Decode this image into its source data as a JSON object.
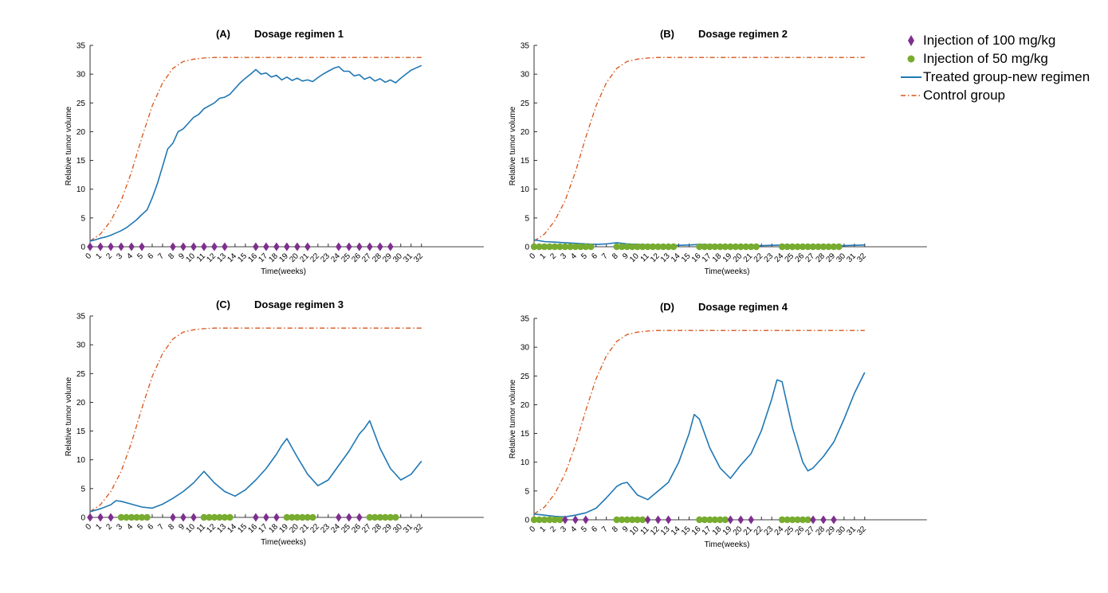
{
  "colors": {
    "treated": "#1f77b4",
    "control": "#d95319",
    "inj100": "#7e2f8e",
    "inj50": "#77ac30",
    "axis": "#000000"
  },
  "legend": {
    "entries": [
      {
        "label": "Injection of 100 mg/kg",
        "marker": "diamond",
        "color": "#7e2f8e"
      },
      {
        "label": "Injection of 50 mg/kg",
        "marker": "circle",
        "color": "#77ac30"
      },
      {
        "label": "Treated group-new regimen",
        "marker": "solid-line",
        "color": "#1f77b4"
      },
      {
        "label": "Control group",
        "marker": "dash-dot-line",
        "color": "#d95319"
      }
    ]
  },
  "chart_data": [
    {
      "type": "line",
      "panel": "(A)",
      "title": "Dosage regimen 1",
      "xlabel": "Time(weeks)",
      "ylabel": "Relative tumor volume",
      "xlim": [
        0,
        32
      ],
      "ylim": [
        0,
        35
      ],
      "xticks": [
        "0",
        "1",
        "2",
        "3",
        "4",
        "5",
        "6",
        "7",
        "8",
        "9",
        "10",
        "11",
        "12",
        "13",
        "14",
        "15",
        "16",
        "17",
        "18",
        "19",
        "20",
        "21",
        "22",
        "23",
        "24",
        "25",
        "26",
        "27",
        "28",
        "29",
        "30",
        "31",
        "32"
      ],
      "yticks": [
        "0",
        "5",
        "10",
        "15",
        "20",
        "25",
        "30",
        "35"
      ],
      "series": [
        {
          "name": "Control group",
          "style": "dash-dot",
          "x": [
            0,
            1,
            2,
            3,
            4,
            5,
            6,
            7,
            8,
            9,
            10,
            11,
            12,
            14,
            16,
            20,
            24,
            28,
            32
          ],
          "y": [
            1.0,
            2.2,
            4.5,
            8.0,
            13.0,
            19.0,
            24.5,
            28.5,
            31.0,
            32.2,
            32.6,
            32.8,
            32.9,
            32.9,
            32.9,
            32.9,
            32.9,
            32.9,
            32.9
          ]
        },
        {
          "name": "Treated group-new regimen",
          "style": "solid",
          "x": [
            0,
            0.5,
            1,
            1.5,
            2,
            2.5,
            3,
            3.5,
            4,
            4.5,
            5,
            5.5,
            6,
            6.5,
            7,
            7.5,
            8,
            8.5,
            9,
            9.5,
            10,
            10.5,
            11,
            11.5,
            12,
            12.5,
            13,
            13.5,
            14,
            14.5,
            15,
            15.5,
            16,
            16.5,
            17,
            17.5,
            18,
            18.5,
            19,
            19.5,
            20,
            20.5,
            21,
            21.5,
            22,
            22.5,
            23,
            23.5,
            24,
            24.5,
            25,
            25.5,
            26,
            26.5,
            27,
            27.5,
            28,
            28.5,
            29,
            29.5,
            30,
            30.5,
            31,
            31.5,
            32
          ],
          "y": [
            1.0,
            1.2,
            1.5,
            1.7,
            2.0,
            2.4,
            2.8,
            3.3,
            4.0,
            4.7,
            5.6,
            6.4,
            8.5,
            11.0,
            14.0,
            17.0,
            18.0,
            20.0,
            20.5,
            21.5,
            22.5,
            23.0,
            24.0,
            24.5,
            25.0,
            25.8,
            26.0,
            26.5,
            27.5,
            28.5,
            29.3,
            30.0,
            30.8,
            30.0,
            30.2,
            29.5,
            29.8,
            29.0,
            29.5,
            28.9,
            29.3,
            28.8,
            29.0,
            28.7,
            29.4,
            30.0,
            30.5,
            31.0,
            31.3,
            30.5,
            30.5,
            29.7,
            29.9,
            29.1,
            29.5,
            28.8,
            29.2,
            28.6,
            29.0,
            28.5,
            29.3,
            30.0,
            30.7,
            31.1,
            31.5
          ]
        }
      ],
      "injections_100mgkg_weeks": [
        0,
        1,
        2,
        3,
        4,
        5,
        8,
        9,
        10,
        11,
        12,
        13,
        16,
        17,
        18,
        19,
        20,
        21,
        24,
        25,
        26,
        27,
        28,
        29
      ],
      "injections_50mgkg_weeks": []
    },
    {
      "type": "line",
      "panel": "(B)",
      "title": "Dosage regimen 2",
      "xlabel": "Time(weeks)",
      "ylabel": "Relative tumor volume",
      "xlim": [
        0,
        32
      ],
      "ylim": [
        0,
        35
      ],
      "xticks": [
        "0",
        "1",
        "2",
        "3",
        "4",
        "5",
        "6",
        "7",
        "8",
        "9",
        "10",
        "11",
        "12",
        "13",
        "14",
        "15",
        "16",
        "17",
        "18",
        "19",
        "20",
        "21",
        "22",
        "23",
        "24",
        "25",
        "26",
        "27",
        "28",
        "29",
        "30",
        "31",
        "32"
      ],
      "yticks": [
        "0",
        "5",
        "10",
        "15",
        "20",
        "25",
        "30",
        "35"
      ],
      "series": [
        {
          "name": "Control group",
          "style": "dash-dot",
          "x": [
            0,
            1,
            2,
            3,
            4,
            5,
            6,
            7,
            8,
            9,
            10,
            11,
            12,
            14,
            16,
            20,
            24,
            28,
            32
          ],
          "y": [
            1.0,
            2.2,
            4.5,
            8.0,
            13.0,
            19.0,
            24.5,
            28.5,
            31.0,
            32.2,
            32.6,
            32.8,
            32.9,
            32.9,
            32.9,
            32.9,
            32.9,
            32.9,
            32.9
          ]
        },
        {
          "name": "Treated group-new regimen",
          "style": "solid",
          "x": [
            0,
            1,
            2,
            3,
            4,
            5,
            6,
            7,
            8,
            9,
            10,
            11,
            12,
            13,
            14,
            15,
            16,
            17,
            18,
            19,
            20,
            21,
            22,
            23,
            24,
            25,
            26,
            27,
            28,
            29,
            30,
            31,
            32
          ],
          "y": [
            1.2,
            0.9,
            0.8,
            0.7,
            0.6,
            0.5,
            0.4,
            0.5,
            0.7,
            0.5,
            0.4,
            0.35,
            0.3,
            0.25,
            0.25,
            0.3,
            0.4,
            0.35,
            0.3,
            0.25,
            0.25,
            0.2,
            0.2,
            0.25,
            0.3,
            0.25,
            0.2,
            0.2,
            0.2,
            0.15,
            0.2,
            0.25,
            0.3
          ]
        }
      ],
      "injections_100mgkg_weeks": [],
      "injections_50mgkg_weeks": [
        0,
        0.5,
        1,
        1.5,
        2,
        2.5,
        3,
        3.5,
        4,
        4.5,
        5,
        5.5,
        8,
        8.5,
        9,
        9.5,
        10,
        10.5,
        11,
        11.5,
        12,
        12.5,
        13,
        13.5,
        16,
        16.5,
        17,
        17.5,
        18,
        18.5,
        19,
        19.5,
        20,
        20.5,
        21,
        21.5,
        24,
        24.5,
        25,
        25.5,
        26,
        26.5,
        27,
        27.5,
        28,
        28.5,
        29,
        29.5
      ]
    },
    {
      "type": "line",
      "panel": "(C)",
      "title": "Dosage regimen 3",
      "xlabel": "Time(weeks)",
      "ylabel": "Relative tumor volume",
      "xlim": [
        0,
        32
      ],
      "ylim": [
        0,
        35
      ],
      "xticks": [
        "0",
        "1",
        "2",
        "3",
        "4",
        "5",
        "6",
        "7",
        "8",
        "9",
        "10",
        "11",
        "12",
        "13",
        "14",
        "15",
        "16",
        "17",
        "18",
        "19",
        "20",
        "21",
        "22",
        "23",
        "24",
        "25",
        "26",
        "27",
        "28",
        "29",
        "30",
        "31",
        "32"
      ],
      "yticks": [
        "0",
        "5",
        "10",
        "15",
        "20",
        "25",
        "30",
        "35"
      ],
      "series": [
        {
          "name": "Control group",
          "style": "dash-dot",
          "x": [
            0,
            1,
            2,
            3,
            4,
            5,
            6,
            7,
            8,
            9,
            10,
            11,
            12,
            14,
            16,
            20,
            24,
            28,
            32
          ],
          "y": [
            1.0,
            2.2,
            4.5,
            8.0,
            13.0,
            19.0,
            24.5,
            28.5,
            31.0,
            32.2,
            32.6,
            32.8,
            32.9,
            32.9,
            32.9,
            32.9,
            32.9,
            32.9,
            32.9
          ]
        },
        {
          "name": "Treated group-new regimen",
          "style": "solid",
          "x": [
            0,
            1,
            2,
            2.5,
            3,
            4,
            5,
            6,
            7,
            8,
            9,
            10,
            10.5,
            11,
            12,
            13,
            14,
            15,
            16,
            17,
            18,
            18.5,
            19,
            20,
            21,
            22,
            23,
            24,
            25,
            26,
            26.5,
            27,
            28,
            29,
            30,
            31,
            32
          ],
          "y": [
            1.0,
            1.5,
            2.2,
            2.9,
            2.8,
            2.3,
            1.8,
            1.6,
            2.3,
            3.3,
            4.5,
            6.0,
            7.0,
            8.0,
            6.0,
            4.5,
            3.7,
            4.8,
            6.5,
            8.5,
            11.0,
            12.5,
            13.7,
            10.5,
            7.5,
            5.5,
            6.5,
            9.0,
            11.5,
            14.5,
            15.5,
            16.8,
            12.0,
            8.5,
            6.5,
            7.5,
            9.8
          ]
        }
      ],
      "injections_100mgkg_weeks": [
        0,
        1,
        2,
        8,
        9,
        10,
        16,
        17,
        18,
        24,
        25,
        26
      ],
      "injections_50mgkg_weeks": [
        3,
        3.5,
        4,
        4.5,
        5,
        5.5,
        11,
        11.5,
        12,
        12.5,
        13,
        13.5,
        19,
        19.5,
        20,
        20.5,
        21,
        21.5,
        27,
        27.5,
        28,
        28.5,
        29,
        29.5
      ]
    },
    {
      "type": "line",
      "panel": "(D)",
      "title": "Dosage regimen 4",
      "xlabel": "Time(weeks)",
      "ylabel": "Relative tumor volume",
      "xlim": [
        0,
        32
      ],
      "ylim": [
        0,
        35
      ],
      "xticks": [
        "0",
        "1",
        "2",
        "3",
        "4",
        "5",
        "6",
        "7",
        "8",
        "9",
        "10",
        "11",
        "12",
        "13",
        "14",
        "15",
        "16",
        "17",
        "18",
        "19",
        "20",
        "21",
        "22",
        "23",
        "24",
        "25",
        "26",
        "27",
        "28",
        "29",
        "30",
        "31",
        "32"
      ],
      "yticks": [
        "0",
        "5",
        "10",
        "15",
        "20",
        "25",
        "30",
        "35"
      ],
      "series": [
        {
          "name": "Control group",
          "style": "dash-dot",
          "x": [
            0,
            1,
            2,
            3,
            4,
            5,
            6,
            7,
            8,
            9,
            10,
            11,
            12,
            14,
            16,
            20,
            24,
            28,
            32
          ],
          "y": [
            1.0,
            2.2,
            4.5,
            8.0,
            13.0,
            19.0,
            24.5,
            28.5,
            31.0,
            32.2,
            32.6,
            32.8,
            32.9,
            32.9,
            32.9,
            32.9,
            32.9,
            32.9,
            32.9
          ]
        },
        {
          "name": "Treated group-new regimen",
          "style": "solid",
          "x": [
            0,
            1,
            2,
            3,
            4,
            5,
            6,
            7,
            8,
            8.5,
            9,
            10,
            11,
            12,
            13,
            14,
            15,
            15.5,
            16,
            17,
            18,
            19,
            20,
            21,
            22,
            23,
            23.5,
            24,
            25,
            26,
            26.5,
            27,
            28,
            29,
            30,
            31,
            32
          ],
          "y": [
            1.0,
            0.8,
            0.6,
            0.5,
            0.8,
            1.2,
            2.0,
            3.8,
            5.8,
            6.3,
            6.5,
            4.3,
            3.5,
            5.0,
            6.5,
            10.0,
            15.0,
            18.3,
            17.5,
            12.5,
            9.0,
            7.2,
            9.5,
            11.5,
            15.5,
            21.0,
            24.3,
            24.0,
            16.0,
            10.0,
            8.5,
            9.0,
            11.0,
            13.5,
            17.5,
            22.0,
            25.6
          ]
        }
      ],
      "injections_100mgkg_weeks": [
        3,
        4,
        5,
        11,
        12,
        13,
        19,
        20,
        21,
        27,
        28,
        29
      ],
      "injections_50mgkg_weeks": [
        0,
        0.5,
        1,
        1.5,
        2,
        2.5,
        8,
        8.5,
        9,
        9.5,
        10,
        10.5,
        16,
        16.5,
        17,
        17.5,
        18,
        18.5,
        24,
        24.5,
        25,
        25.5,
        26,
        26.5
      ]
    }
  ]
}
